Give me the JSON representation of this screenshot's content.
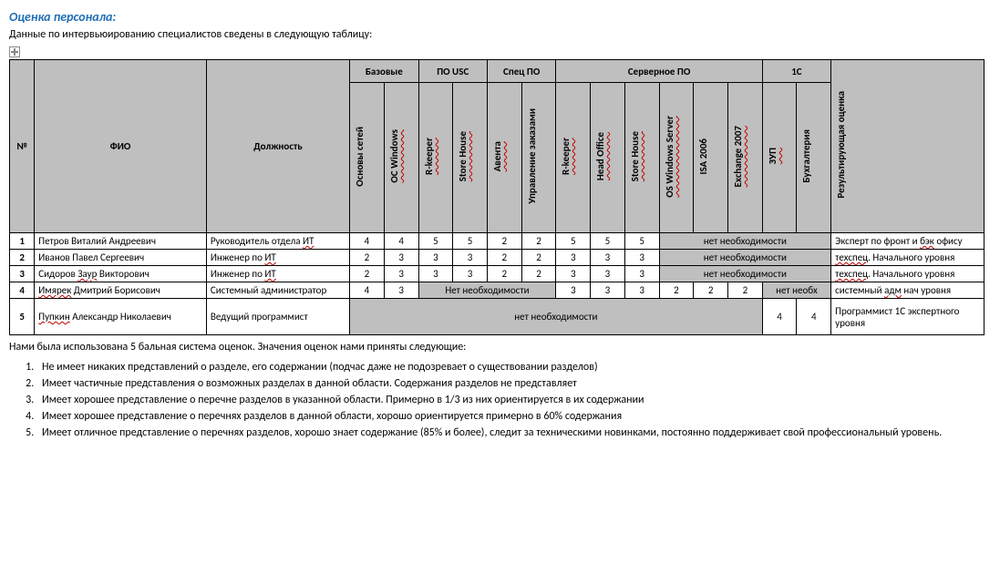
{
  "title": "Оценка персонала:",
  "subtitle": "Данные по интервьюированию специалистов сведены в следующую таблицу:",
  "headers": {
    "num": "№",
    "fio": "ФИО",
    "position": "Должность",
    "result": "Результирующая оценка",
    "groups": {
      "basic": "Базовые",
      "usc": "ПО USC",
      "spec": "Спец ПО",
      "server": "Серверное ПО",
      "onec": "1С"
    },
    "cols": {
      "net": "Основы сетей",
      "oswin": "ОС Windows",
      "rkeeper1": "R-keeper",
      "storehouse1": "Store House",
      "aventa": "Авента",
      "orders": "Управление заказами",
      "rkeeper2": "R-keeper",
      "headoffice": "Head Office",
      "storehouse2": "Store House",
      "winserver": "OS Windows Server",
      "isa": "ISA 2006",
      "exchange": "Exchange 2007",
      "zup": "ЗУП",
      "buh": "Бухгалтерия"
    }
  },
  "note_no_need": "нет необходимости",
  "note_no_need_cap": "Нет необходимости",
  "note_no_need_short": "нет необх",
  "rows": [
    {
      "n": "1",
      "name_plain": "Петров Виталий Андреевич",
      "name_squiggle": "",
      "pos_pre": "Руководитель отдела ",
      "pos_sq": "ИТ",
      "vals": [
        "4",
        "4",
        "5",
        "5",
        "2",
        "2",
        "5",
        "5",
        "5"
      ],
      "span_after": 5,
      "result": "Эксперт по фронт и бэк офису",
      "result_sq": "бэк"
    },
    {
      "n": "2",
      "name_pre": "Иванов",
      "name_sq": "",
      "name_rest": " Павел Сергеевич",
      "pos_pre": "Инженер по ",
      "pos_sq": "ИТ",
      "vals": [
        "2",
        "3",
        "3",
        "3",
        "2",
        "2",
        "3",
        "3",
        "3"
      ],
      "span_after": 5,
      "result_sq": "техспец",
      "result_rest": ". Начального уровня"
    },
    {
      "n": "3",
      "name_pre": "Сидоров ",
      "name_sq": "Заур",
      "name_rest": " Викторович",
      "pos_pre": "Инженер по ",
      "pos_sq": "ИТ",
      "vals": [
        "2",
        "3",
        "3",
        "3",
        "2",
        "2",
        "3",
        "3",
        "3"
      ],
      "span_after": 5,
      "result_sq": "техспец",
      "result_rest": ". Начального уровня"
    }
  ],
  "row4": {
    "n": "4",
    "name_pre": "Имярек",
    "name_rest": " Дмитрий Борисович",
    "pos": "Системный администратор",
    "v1": "4",
    "v2": "3",
    "v_server": [
      "3",
      "3",
      "3",
      "2",
      "2",
      "2"
    ],
    "result_pre": "системный ",
    "result_sq": "адм",
    "result_rest": " нач уровня"
  },
  "row5": {
    "n": "5",
    "name_pre": "Пупкин",
    "name_rest": " Александр Николаевич",
    "pos": "Ведущий программист",
    "zup": "4",
    "buh": "4",
    "result": "Программист 1С экспертного уровня"
  },
  "footer": "Нами была использована 5 бальная система оценок. Значения оценок нами приняты следующие:",
  "scale": [
    "Не имеет никаких представлений о разделе, его содержании (подчас даже не подозревает о существовании разделов)",
    "Имеет частичные представления о возможных разделах в данной области. Содержания разделов не представляет",
    "Имеет хорошее представление о перечне разделов в указанной области. Примерно в 1/3 из них ориентируется в их содержании",
    "Имеет хорошее представление о перечнях разделов в данной области, хорошо ориентируется примерно в 60% содержания",
    "Имеет отличное представление о перечнях разделов, хорошо знает содержание (85% и более), следит за техническими новинками, постоянно поддерживает свой профессиональный уровень."
  ],
  "colors": {
    "header_bg": "#bfbfbf",
    "title_color": "#1f6fb5",
    "border": "#000000"
  }
}
